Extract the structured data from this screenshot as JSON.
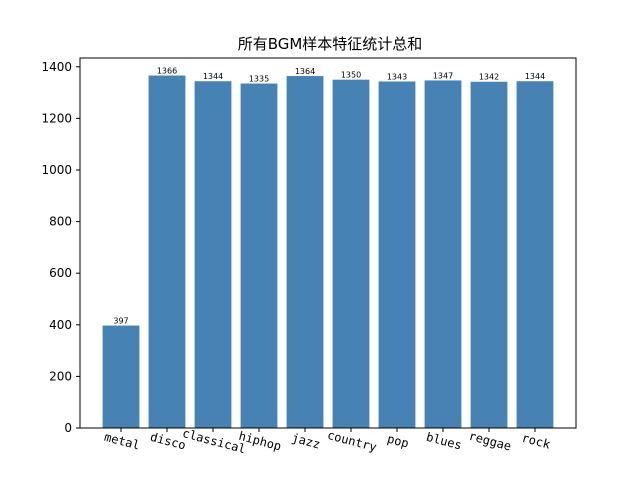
{
  "chart_data": {
    "type": "bar",
    "title": "所有BGM样本特征统计总和",
    "xlabel": "",
    "ylabel": "",
    "categories": [
      "metal",
      "disco",
      "classical",
      "hiphop",
      "jazz",
      "country",
      "pop",
      "blues",
      "reggae",
      "rock"
    ],
    "values": [
      397,
      1366,
      1344,
      1335,
      1364,
      1350,
      1343,
      1347,
      1342,
      1344
    ],
    "data_labels": [
      "397",
      "1366",
      "1344",
      "1335",
      "1364",
      "1350",
      "1343",
      "1347",
      "1342",
      "1344"
    ],
    "ylim": [
      0,
      1434
    ],
    "yticks": [
      0,
      200,
      400,
      600,
      800,
      1000,
      1200,
      1400
    ],
    "ytick_labels": [
      "0",
      "200",
      "400",
      "600",
      "800",
      "1000",
      "1200",
      "1400"
    ],
    "bar_color": "#4682b4",
    "grid": false,
    "legend": "none"
  }
}
